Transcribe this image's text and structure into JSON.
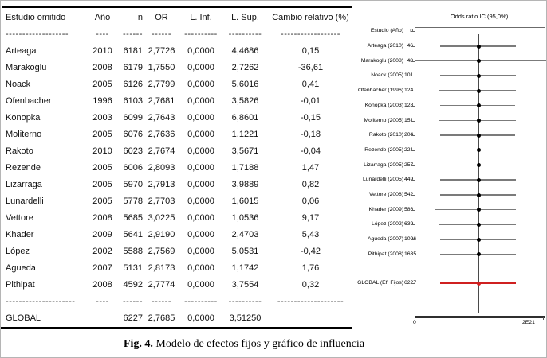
{
  "caption": {
    "prefix": "Fig. 4.",
    "text": " Modelo de efectos fijos y gráfico de influencia"
  },
  "chart_data": [
    {
      "type": "table",
      "columns": [
        "Estudio omitido",
        "Año",
        "n",
        "OR",
        "L. Inf.",
        "L. Sup.",
        "Cambio relativo (%)"
      ],
      "header_rule_dashes": [
        "-------------------",
        "----",
        "------",
        "------",
        "----------",
        "----------",
        "------------------"
      ],
      "rows": [
        [
          "Arteaga",
          "2010",
          "6181",
          "2,7726",
          "0,0000",
          "4,4686",
          "0,15"
        ],
        [
          "Marakoglu",
          "2008",
          "6179",
          "1,7550",
          "0,0000",
          "2,7262",
          "-36,61"
        ],
        [
          "Noack",
          "2005",
          "6126",
          "2,7799",
          "0,0000",
          "5,6016",
          "0,41"
        ],
        [
          "Ofenbacher",
          "1996",
          "6103",
          "2,7681",
          "0,0000",
          "3,5826",
          "-0,01"
        ],
        [
          "Konopka",
          "2003",
          "6099",
          "2,7643",
          "0,0000",
          "6,8601",
          "-0,15"
        ],
        [
          "Moliterno",
          "2005",
          "6076",
          "2,7636",
          "0,0000",
          "1,1221",
          "-0,18"
        ],
        [
          "Rakoto",
          "2010",
          "6023",
          "2,7674",
          "0,0000",
          "3,5671",
          "-0,04"
        ],
        [
          "Rezende",
          "2005",
          "6006",
          "2,8093",
          "0,0000",
          "1,7188",
          "1,47"
        ],
        [
          "Lizarraga",
          "2005",
          "5970",
          "2,7913",
          "0,0000",
          "3,9889",
          "0,82"
        ],
        [
          "Lunardelli",
          "2005",
          "5778",
          "2,7703",
          "0,0000",
          "1,6015",
          "0,06"
        ],
        [
          "Vettore",
          "2008",
          "5685",
          "3,0225",
          "0,0000",
          "1,0536",
          "9,17"
        ],
        [
          "Khader",
          "2009",
          "5641",
          "2,9190",
          "0,0000",
          "2,4703",
          "5,43"
        ],
        [
          "López",
          "2002",
          "5588",
          "2,7569",
          "0,0000",
          "5,0531",
          "-0,42"
        ],
        [
          "Agueda",
          "2007",
          "5131",
          "2,8173",
          "0,0000",
          "1,1742",
          "1,76"
        ],
        [
          "Pithipat",
          "2008",
          "4592",
          "2,7774",
          "0,0000",
          "3,7554",
          "0,32"
        ]
      ],
      "footer_rule_dashes": [
        "---------------------",
        "----",
        "------",
        "------",
        "----------",
        "----------",
        "--------------------"
      ],
      "global_row": [
        "GLOBAL",
        "",
        "6227",
        "2,7685",
        "0,0000",
        "3,51250",
        ""
      ]
    },
    {
      "type": "scatter",
      "style": "forest-influence-plot",
      "title": "Odds ratio IC (95,0%)",
      "header": {
        "study": "Estudio (Año)",
        "n": "n"
      },
      "x_axis": {
        "tick_labels": [
          "0",
          "2E21"
        ],
        "grid": false
      },
      "dots_center_frac": 0.494,
      "rows": [
        {
          "label": "Arteaga (2010)",
          "n": "46",
          "ci_frac": [
            0.198,
            0.784
          ]
        },
        {
          "label": "Marakoglu (2008)",
          "n": "48",
          "ci_frac": [
            0.0,
            1.03
          ]
        },
        {
          "label": "Noack (2005)",
          "n": "101",
          "ci_frac": [
            0.198,
            0.784
          ]
        },
        {
          "label": "Ofenbacher (1996)",
          "n": "124",
          "ci_frac": [
            0.19,
            0.784
          ]
        },
        {
          "label": "Konopka (2003)",
          "n": "128",
          "ci_frac": [
            0.198,
            0.775
          ]
        },
        {
          "label": "Moliterno (2005)",
          "n": "151",
          "ci_frac": [
            0.19,
            0.784
          ]
        },
        {
          "label": "Rakoto (2010)",
          "n": "204",
          "ci_frac": [
            0.198,
            0.775
          ]
        },
        {
          "label": "Rezende (2005)",
          "n": "221",
          "ci_frac": [
            0.19,
            0.784
          ]
        },
        {
          "label": "Lizarraga (2005)",
          "n": "257",
          "ci_frac": [
            0.198,
            0.784
          ]
        },
        {
          "label": "Lunardelli (2005)",
          "n": "449",
          "ci_frac": [
            0.198,
            0.784
          ]
        },
        {
          "label": "Vettore (2008)",
          "n": "542",
          "ci_frac": [
            0.198,
            0.784
          ]
        },
        {
          "label": "Khader (2009)",
          "n": "586",
          "ci_frac": [
            0.16,
            0.784
          ]
        },
        {
          "label": "López (2002)",
          "n": "639",
          "ci_frac": [
            0.19,
            0.784
          ]
        },
        {
          "label": "Agueda (2007)",
          "n": "1096",
          "ci_frac": [
            0.198,
            0.784
          ]
        },
        {
          "label": "Pithipat (2008)",
          "n": "1635",
          "ci_frac": [
            0.198,
            0.784
          ]
        }
      ],
      "global": {
        "label": "GLOBAL (Ef. Fijos)",
        "n": "6227",
        "ci_frac": [
          0.198,
          0.784
        ]
      },
      "colors": {
        "ci_line": "#7b7b7b",
        "dot": "#000000",
        "global": "#cf2020",
        "axis": "#2f2f2f",
        "ref_line": "#4a4a4a"
      }
    }
  ]
}
